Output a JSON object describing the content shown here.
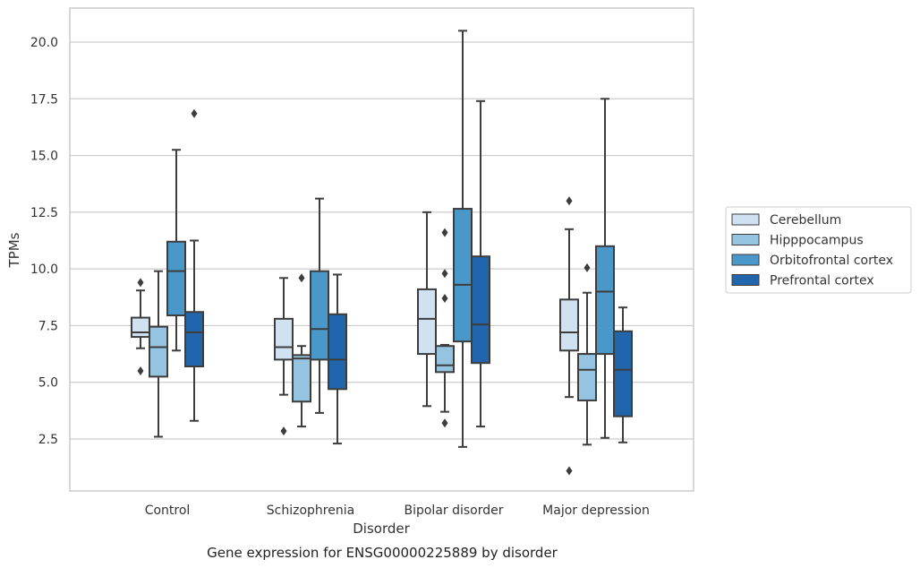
{
  "caption": "Gene expression for ENSG00000225889 by disorder",
  "chart_data": {
    "type": "box",
    "xlabel": "Disorder",
    "ylabel": "TPMs",
    "ylim": [
      0.3,
      21.5
    ],
    "yticks": [
      2.5,
      5.0,
      7.5,
      10.0,
      12.5,
      15.0,
      17.5,
      20.0
    ],
    "ytick_labels": [
      "2.5",
      "5.0",
      "7.5",
      "10.0",
      "12.5",
      "15.0",
      "17.5",
      "20.0"
    ],
    "grid": "horizontal",
    "legend_position": "right",
    "categories": [
      "Control",
      "Schizophrenia",
      "Bipolar disorder",
      "Major depression"
    ],
    "series": [
      {
        "name": "Cerebellum",
        "color": "#d0e1f2",
        "boxes": [
          {
            "whislo": 6.5,
            "q1": 7.0,
            "med": 7.2,
            "q3": 7.85,
            "whishi": 9.05,
            "fliers": [
              9.4,
              5.5
            ]
          },
          {
            "whislo": 4.45,
            "q1": 6.0,
            "med": 6.55,
            "q3": 7.8,
            "whishi": 9.6,
            "fliers": [
              2.85
            ]
          },
          {
            "whislo": 3.95,
            "q1": 6.25,
            "med": 7.8,
            "q3": 9.1,
            "whishi": 12.5,
            "fliers": []
          },
          {
            "whislo": 4.35,
            "q1": 6.4,
            "med": 7.2,
            "q3": 8.65,
            "whishi": 11.75,
            "fliers": [
              13.0,
              1.1
            ]
          }
        ]
      },
      {
        "name": "Hipppocampus",
        "color": "#94c4df",
        "boxes": [
          {
            "whislo": 2.6,
            "q1": 5.25,
            "med": 6.55,
            "q3": 7.45,
            "whishi": 9.9,
            "fliers": []
          },
          {
            "whislo": 3.05,
            "q1": 4.15,
            "med": 6.05,
            "q3": 6.2,
            "whishi": 6.6,
            "fliers": [
              9.6
            ]
          },
          {
            "whislo": 3.7,
            "q1": 5.45,
            "med": 5.75,
            "q3": 6.6,
            "whishi": 6.65,
            "fliers": [
              11.6,
              9.8,
              8.7,
              3.2
            ]
          },
          {
            "whislo": 2.25,
            "q1": 4.2,
            "med": 5.55,
            "q3": 6.25,
            "whishi": 8.95,
            "fliers": [
              10.05
            ]
          }
        ]
      },
      {
        "name": "Orbitofrontal cortex",
        "color": "#4a98c9",
        "boxes": [
          {
            "whislo": 6.4,
            "q1": 7.95,
            "med": 9.9,
            "q3": 11.2,
            "whishi": 15.25,
            "fliers": []
          },
          {
            "whislo": 3.65,
            "q1": 6.0,
            "med": 7.35,
            "q3": 9.9,
            "whishi": 13.1,
            "fliers": []
          },
          {
            "whislo": 2.15,
            "q1": 6.8,
            "med": 9.3,
            "q3": 12.65,
            "whishi": 20.5,
            "fliers": []
          },
          {
            "whislo": 2.55,
            "q1": 6.25,
            "med": 9.0,
            "q3": 11.0,
            "whishi": 17.5,
            "fliers": []
          }
        ]
      },
      {
        "name": "Prefrontal cortex",
        "color": "#2166ac",
        "boxes": [
          {
            "whislo": 3.3,
            "q1": 5.7,
            "med": 7.2,
            "q3": 8.1,
            "whishi": 11.25,
            "fliers": [
              16.85
            ]
          },
          {
            "whislo": 2.3,
            "q1": 4.7,
            "med": 6.0,
            "q3": 8.0,
            "whishi": 9.75,
            "fliers": []
          },
          {
            "whislo": 3.05,
            "q1": 5.85,
            "med": 7.55,
            "q3": 10.55,
            "whishi": 17.4,
            "fliers": []
          },
          {
            "whislo": 2.35,
            "q1": 3.5,
            "med": 5.55,
            "q3": 7.25,
            "whishi": 8.3,
            "fliers": []
          }
        ]
      }
    ]
  }
}
